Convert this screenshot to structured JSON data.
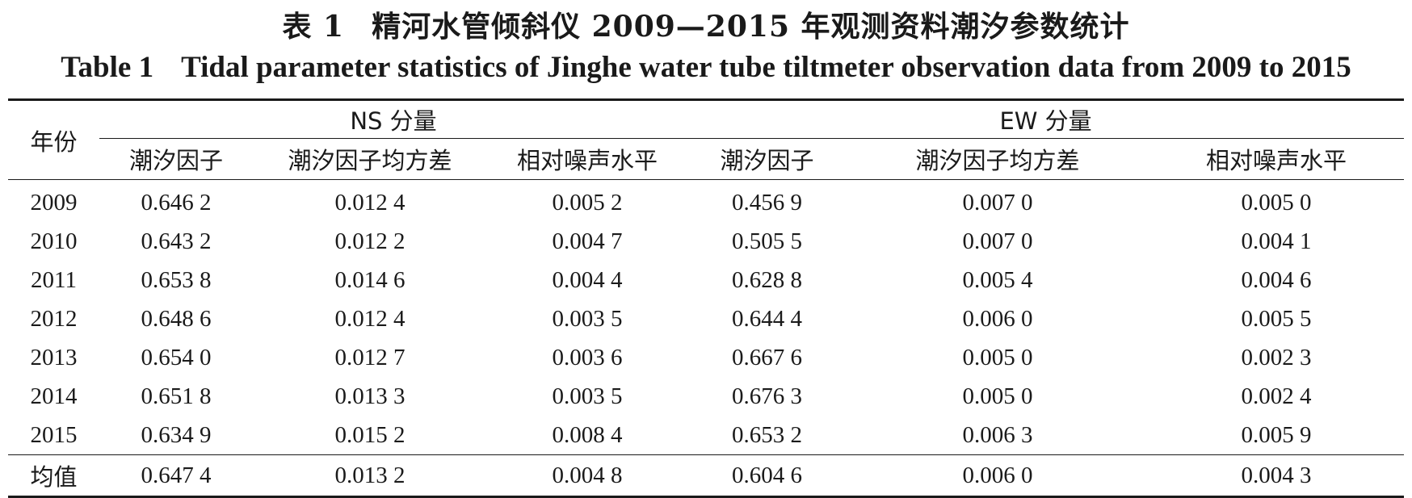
{
  "title": {
    "zh_number": "表 1",
    "zh_text": "精河水管倾斜仪 2009—2015 年观测资料潮汐参数统计",
    "en_number": "Table 1",
    "en_text": "Tidal parameter statistics of Jinghe water tube tiltmeter observation data from 2009 to 2015"
  },
  "table": {
    "year_header": "年份",
    "groups": [
      "NS 分量",
      "EW 分量"
    ],
    "sub_headers": [
      "潮汐因子",
      "潮汐因子均方差",
      "相对噪声水平",
      "潮汐因子",
      "潮汐因子均方差",
      "相对噪声水平"
    ],
    "rows": [
      {
        "year": "2009",
        "values": [
          "0.646 2",
          "0.012 4",
          "0.005 2",
          "0.456 9",
          "0.007 0",
          "0.005 0"
        ]
      },
      {
        "year": "2010",
        "values": [
          "0.643 2",
          "0.012 2",
          "0.004 7",
          "0.505 5",
          "0.007 0",
          "0.004 1"
        ]
      },
      {
        "year": "2011",
        "values": [
          "0.653 8",
          "0.014 6",
          "0.004 4",
          "0.628 8",
          "0.005 4",
          "0.004 6"
        ]
      },
      {
        "year": "2012",
        "values": [
          "0.648 6",
          "0.012 4",
          "0.003 5",
          "0.644 4",
          "0.006 0",
          "0.005 5"
        ]
      },
      {
        "year": "2013",
        "values": [
          "0.654 0",
          "0.012 7",
          "0.003 6",
          "0.667 6",
          "0.005 0",
          "0.002 3"
        ]
      },
      {
        "year": "2014",
        "values": [
          "0.651 8",
          "0.013 3",
          "0.003 5",
          "0.676 3",
          "0.005 0",
          "0.002 4"
        ]
      },
      {
        "year": "2015",
        "values": [
          "0.634 9",
          "0.015 2",
          "0.008 4",
          "0.653 2",
          "0.006 3",
          "0.005 9"
        ]
      }
    ],
    "mean": {
      "label": "均值",
      "values": [
        "0.647 4",
        "0.013 2",
        "0.004 8",
        "0.604 6",
        "0.006 0",
        "0.004 3"
      ]
    }
  }
}
